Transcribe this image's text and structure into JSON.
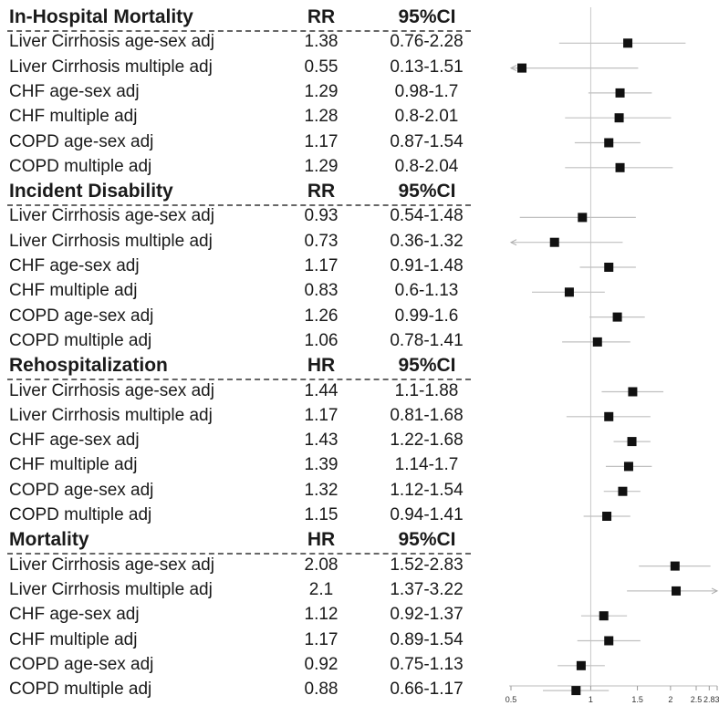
{
  "chart_data": {
    "type": "forest",
    "x_axis": {
      "ticks": [
        0.5,
        1,
        1.5,
        2,
        2.5,
        2.8,
        3
      ],
      "tick_labels": [
        "0.5",
        "1",
        "1.5",
        "2",
        "2.5",
        "2.8",
        "3"
      ],
      "xlim": [
        0.5,
        3
      ],
      "reference_line": 1
    },
    "sections": [
      {
        "title": "In-Hospital Mortality",
        "measure": "RR",
        "ci_header": "95%CI",
        "rows": [
          {
            "label": "Liver Cirrhosis age-sex adj",
            "est": 1.38,
            "est_text": "1.38",
            "lo": 0.76,
            "hi": 2.28,
            "ci_text": "0.76-2.28"
          },
          {
            "label": "Liver Cirrhosis multiple adj",
            "est": 0.55,
            "est_text": "0.55",
            "lo": 0.13,
            "hi": 1.51,
            "ci_text": "0.13-1.51"
          },
          {
            "label": "CHF age-sex adj",
            "est": 1.29,
            "est_text": "1.29",
            "lo": 0.98,
            "hi": 1.7,
            "ci_text": "0.98-1.7"
          },
          {
            "label": "CHF multiple adj",
            "est": 1.28,
            "est_text": "1.28",
            "lo": 0.8,
            "hi": 2.01,
            "ci_text": "0.8-2.01"
          },
          {
            "label": "COPD age-sex adj",
            "est": 1.17,
            "est_text": "1.17",
            "lo": 0.87,
            "hi": 1.54,
            "ci_text": "0.87-1.54"
          },
          {
            "label": "COPD multiple adj",
            "est": 1.29,
            "est_text": "1.29",
            "lo": 0.8,
            "hi": 2.04,
            "ci_text": "0.8-2.04"
          }
        ]
      },
      {
        "title": "Incident Disability",
        "measure": "RR",
        "ci_header": "95%CI",
        "rows": [
          {
            "label": "Liver Cirrhosis age-sex adj",
            "est": 0.93,
            "est_text": "0.93",
            "lo": 0.54,
            "hi": 1.48,
            "ci_text": "0.54-1.48"
          },
          {
            "label": "Liver Cirrhosis multiple adj",
            "est": 0.73,
            "est_text": "0.73",
            "lo": 0.36,
            "hi": 1.32,
            "ci_text": "0.36-1.32"
          },
          {
            "label": "CHF age-sex adj",
            "est": 1.17,
            "est_text": "1.17",
            "lo": 0.91,
            "hi": 1.48,
            "ci_text": "0.91-1.48"
          },
          {
            "label": "CHF multiple adj",
            "est": 0.83,
            "est_text": "0.83",
            "lo": 0.6,
            "hi": 1.13,
            "ci_text": "0.6-1.13"
          },
          {
            "label": "COPD age-sex adj",
            "est": 1.26,
            "est_text": "1.26",
            "lo": 0.99,
            "hi": 1.6,
            "ci_text": "0.99-1.6"
          },
          {
            "label": "COPD multiple adj",
            "est": 1.06,
            "est_text": "1.06",
            "lo": 0.78,
            "hi": 1.41,
            "ci_text": "0.78-1.41"
          }
        ]
      },
      {
        "title": "Rehospitalization",
        "measure": "HR",
        "ci_header": "95%CI",
        "rows": [
          {
            "label": "Liver Cirrhosis age-sex adj",
            "est": 1.44,
            "est_text": "1.44",
            "lo": 1.1,
            "hi": 1.88,
            "ci_text": "1.1-1.88"
          },
          {
            "label": "Liver Cirrhosis multiple adj",
            "est": 1.17,
            "est_text": "1.17",
            "lo": 0.81,
            "hi": 1.68,
            "ci_text": "0.81-1.68"
          },
          {
            "label": "CHF age-sex adj",
            "est": 1.43,
            "est_text": "1.43",
            "lo": 1.22,
            "hi": 1.68,
            "ci_text": "1.22-1.68"
          },
          {
            "label": "CHF multiple adj",
            "est": 1.39,
            "est_text": "1.39",
            "lo": 1.14,
            "hi": 1.7,
            "ci_text": "1.14-1.7"
          },
          {
            "label": "COPD age-sex adj",
            "est": 1.32,
            "est_text": "1.32",
            "lo": 1.12,
            "hi": 1.54,
            "ci_text": "1.12-1.54"
          },
          {
            "label": "COPD multiple adj",
            "est": 1.15,
            "est_text": "1.15",
            "lo": 0.94,
            "hi": 1.41,
            "ci_text": "0.94-1.41"
          }
        ]
      },
      {
        "title": "Mortality",
        "measure": "HR",
        "ci_header": "95%CI",
        "rows": [
          {
            "label": "Liver Cirrhosis age-sex adj",
            "est": 2.08,
            "est_text": "2.08",
            "lo": 1.52,
            "hi": 2.83,
            "ci_text": "1.52-2.83"
          },
          {
            "label": "Liver Cirrhosis multiple adj",
            "est": 2.1,
            "est_text": "2.1",
            "lo": 1.37,
            "hi": 3.22,
            "ci_text": "1.37-3.22"
          },
          {
            "label": "CHF age-sex adj",
            "est": 1.12,
            "est_text": "1.12",
            "lo": 0.92,
            "hi": 1.37,
            "ci_text": "0.92-1.37"
          },
          {
            "label": "CHF multiple adj",
            "est": 1.17,
            "est_text": "1.17",
            "lo": 0.89,
            "hi": 1.54,
            "ci_text": "0.89-1.54"
          },
          {
            "label": "COPD age-sex adj",
            "est": 0.92,
            "est_text": "0.92",
            "lo": 0.75,
            "hi": 1.13,
            "ci_text": "0.75-1.13"
          },
          {
            "label": "COPD multiple adj",
            "est": 0.88,
            "est_text": "0.88",
            "lo": 0.66,
            "hi": 1.17,
            "ci_text": "0.66-1.17"
          }
        ]
      }
    ]
  }
}
